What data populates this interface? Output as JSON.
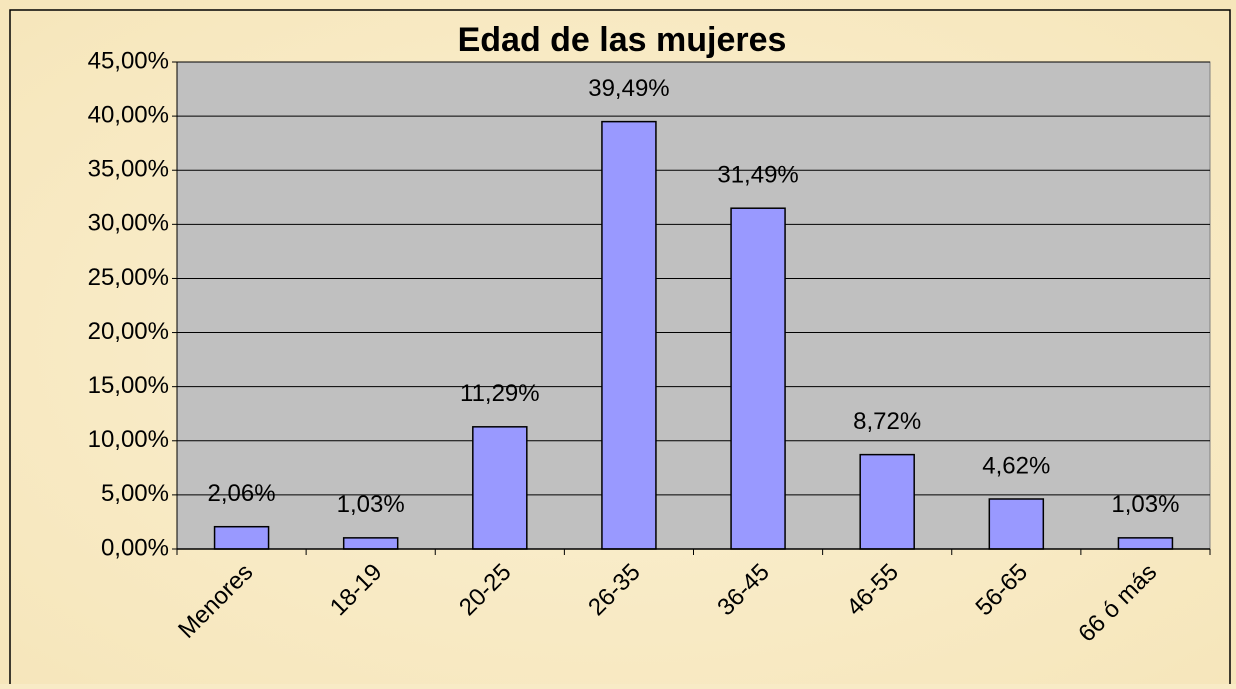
{
  "chart_data": {
    "type": "bar",
    "title": "Edad de las mujeres",
    "categories": [
      "Menores",
      "18-19",
      "20-25",
      "26-35",
      "36-45",
      "46-55",
      "56-65",
      "66 ó más"
    ],
    "values": [
      2.06,
      1.03,
      11.29,
      39.49,
      31.49,
      8.72,
      4.62,
      1.03
    ],
    "value_labels": [
      "2,06%",
      "1,03%",
      "11,29%",
      "39,49%",
      "31,49%",
      "8,72%",
      "4,62%",
      "1,03%"
    ],
    "color": "#9999ff",
    "ylim": [
      0,
      45
    ],
    "yticks": [
      {
        "value": 0,
        "label": "0,00%"
      },
      {
        "value": 5,
        "label": "5,00%"
      },
      {
        "value": 10,
        "label": "10,00%"
      },
      {
        "value": 15,
        "label": "15,00%"
      },
      {
        "value": 20,
        "label": "20,00%"
      },
      {
        "value": 25,
        "label": "25,00%"
      },
      {
        "value": 30,
        "label": "30,00%"
      },
      {
        "value": 35,
        "label": "35,00%"
      },
      {
        "value": 40,
        "label": "40,00%"
      },
      {
        "value": 45,
        "label": "45,00%"
      }
    ],
    "grid": true
  }
}
